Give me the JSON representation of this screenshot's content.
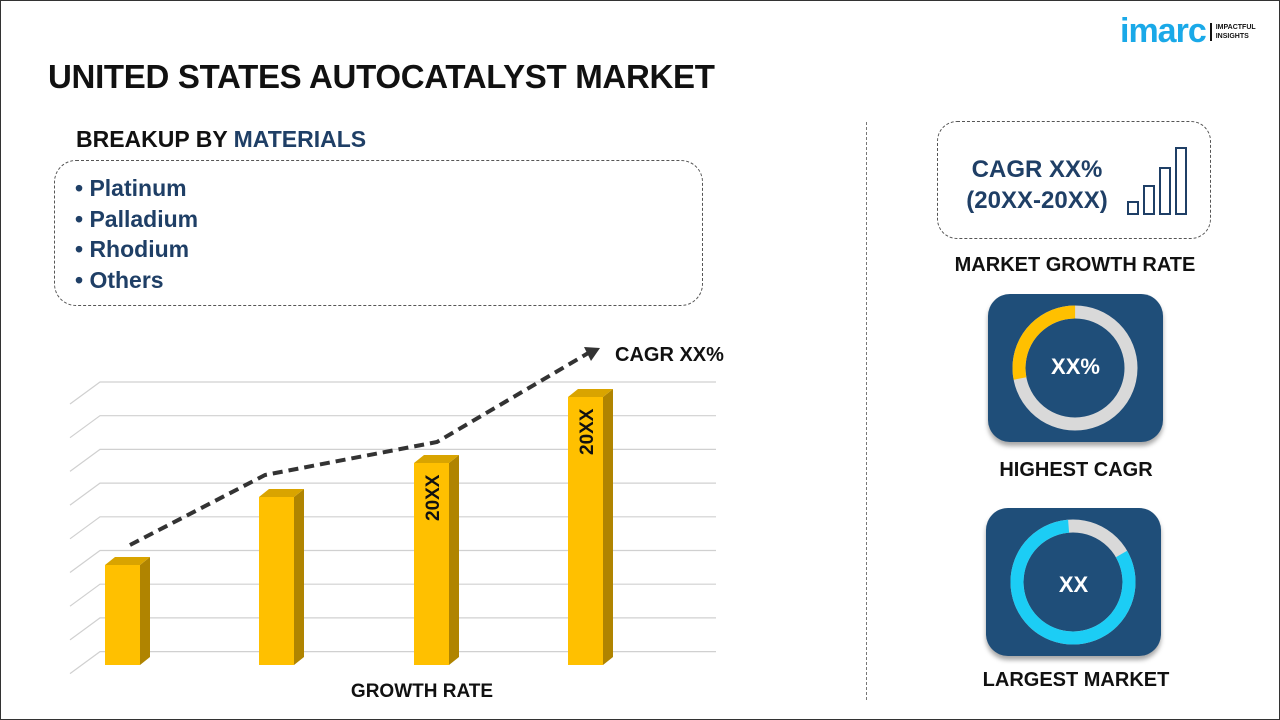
{
  "title": "UNITED STATES AUTOCATALYST MARKET",
  "logo": {
    "word": "imarc",
    "tagline_1": "IMPACTFUL",
    "tagline_2": "INSIGHTS"
  },
  "breakup": {
    "prefix": "BREAKUP BY ",
    "highlight": "MATERIALS",
    "items": [
      "• Platinum",
      "• Palladium",
      "• Rhodium",
      "• Others"
    ]
  },
  "chart": {
    "cagr_label": "CAGR XX%",
    "axis_label": "GROWTH RATE",
    "bar_labels": [
      "",
      "",
      "20XX",
      "20XX"
    ],
    "bar_color": "#ffc000"
  },
  "right": {
    "cagr_line1": "CAGR XX%",
    "cagr_line2": "(20XX-20XX)",
    "market_growth_label": "MARKET GROWTH RATE",
    "highest_value": "XX%",
    "highest_label": "HIGHEST CAGR",
    "highest_fraction": 0.28,
    "highest_color": "#ffc000",
    "largest_value": "XX",
    "largest_label": "LARGEST MARKET",
    "largest_fraction": 0.82,
    "largest_color": "#1ccdf5"
  }
}
